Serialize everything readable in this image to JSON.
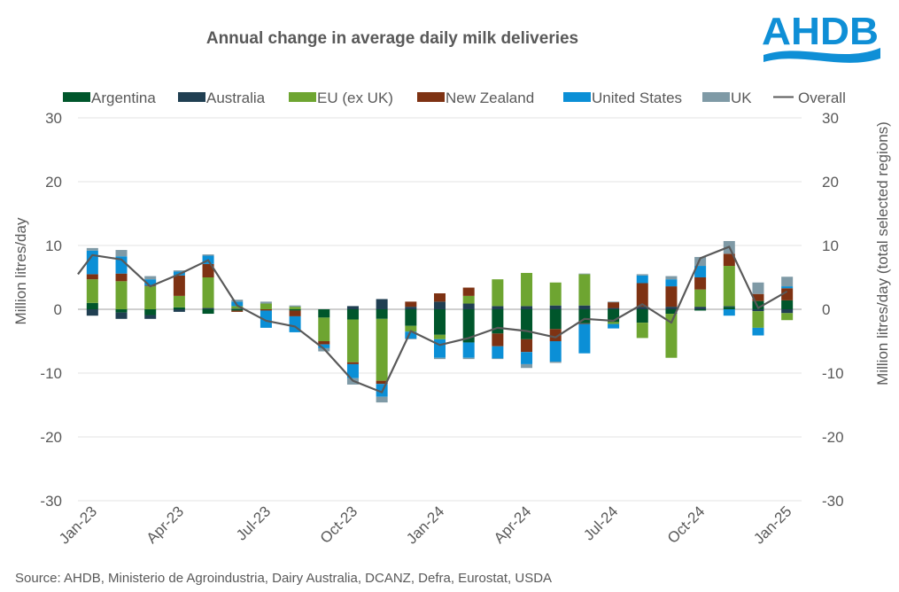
{
  "logo": {
    "text": "AHDB",
    "color": "#0f8fd6"
  },
  "source": "Source: AHDB, Ministerio de Agroindustria, Dairy Australia, DCANZ, Defra, Eurostat, USDA",
  "chart_data": {
    "type": "bar",
    "stacked": true,
    "title": "Annual change in average daily milk deliveries",
    "ylabel": "Million litres/day",
    "y2label": "Million litres/day (total selected regions)",
    "ylim": [
      -30,
      30
    ],
    "y2lim": [
      -30,
      30
    ],
    "yticks": [
      30,
      20,
      10,
      0,
      -10,
      -20,
      -30
    ],
    "grid": true,
    "legend_position": "top",
    "categories": [
      "Jan-23",
      "Feb-23",
      "Mar-23",
      "Apr-23",
      "May-23",
      "Jun-23",
      "Jul-23",
      "Aug-23",
      "Sep-23",
      "Oct-23",
      "Nov-23",
      "Dec-23",
      "Jan-24",
      "Feb-24",
      "Mar-24",
      "Apr-24",
      "May-24",
      "Jun-24",
      "Jul-24",
      "Aug-24",
      "Sep-24",
      "Oct-24",
      "Nov-24",
      "Dec-24",
      "Jan-25"
    ],
    "xtick_labels": [
      "Jan-23",
      "Apr-23",
      "Jul-23",
      "Oct-23",
      "Jan-24",
      "Apr-24",
      "Jul-24",
      "Oct-24",
      "Jan-25"
    ],
    "series": [
      {
        "name": "Argentina",
        "color": "#00562b",
        "values": [
          1.0,
          -0.5,
          -0.9,
          0.3,
          -0.7,
          -0.2,
          0.0,
          -0.2,
          -1.3,
          -1.6,
          -1.5,
          -2.6,
          -4.0,
          -5.2,
          -3.8,
          -4.7,
          -3.1,
          -2.2,
          -2.0,
          -2.1,
          -0.7,
          -0.2,
          0.4,
          1.3,
          1.4
        ]
      },
      {
        "name": "Australia",
        "color": "#203f52",
        "values": [
          -1.0,
          -1.0,
          -0.6,
          -0.4,
          0.2,
          0.1,
          0.0,
          0.0,
          0.0,
          0.5,
          1.6,
          0.4,
          1.2,
          0.9,
          0.5,
          0.5,
          0.6,
          0.6,
          0.2,
          0.4,
          0.4,
          0.4,
          0.1,
          -0.3,
          -0.6
        ]
      },
      {
        "name": "EU (ex UK)",
        "color": "#6ea531",
        "values": [
          3.7,
          4.4,
          3.6,
          1.8,
          4.8,
          0.4,
          0.9,
          0.4,
          -3.7,
          -6.7,
          -9.7,
          -0.9,
          -0.7,
          1.2,
          4.2,
          5.2,
          3.6,
          4.9,
          -0.3,
          -2.4,
          -6.9,
          2.7,
          6.3,
          -2.6,
          -1.1
        ]
      },
      {
        "name": "New Zealand",
        "color": "#7e3213",
        "values": [
          0.8,
          1.2,
          0.1,
          3.2,
          2.1,
          -0.2,
          -0.2,
          -0.9,
          -0.5,
          -0.3,
          -0.5,
          0.8,
          1.3,
          1.3,
          -2.0,
          -2.0,
          -1.9,
          -0.1,
          0.9,
          3.7,
          3.2,
          1.9,
          1.9,
          1.1,
          1.9
        ]
      },
      {
        "name": "United States",
        "color": "#0b8fd6",
        "values": [
          3.7,
          2.7,
          1.0,
          0.6,
          1.3,
          0.7,
          -2.7,
          -2.5,
          -0.6,
          -2.2,
          -2.0,
          -1.1,
          -2.9,
          -2.4,
          -1.9,
          -1.9,
          -3.2,
          -4.6,
          -0.7,
          1.2,
          1.1,
          1.8,
          -1.0,
          -1.2,
          0.3
        ]
      },
      {
        "name": "UK",
        "color": "#7f9aa6",
        "values": [
          0.4,
          1.0,
          0.5,
          0.2,
          0.2,
          0.3,
          0.3,
          0.2,
          -0.5,
          -1.0,
          -0.9,
          -0.1,
          -0.2,
          -0.2,
          -0.1,
          -0.6,
          -0.2,
          0.1,
          0.1,
          0.2,
          0.5,
          1.4,
          2.0,
          1.8,
          1.5
        ]
      }
    ],
    "overall": {
      "name": "Overall",
      "color": "#595959",
      "axis": "secondary",
      "values": [
        8.5,
        7.8,
        3.6,
        5.5,
        7.7,
        0.6,
        -1.8,
        -2.7,
        -6.2,
        -11.2,
        -13.0,
        -3.4,
        -5.6,
        -4.5,
        -2.9,
        -3.4,
        -4.4,
        -1.5,
        -1.8,
        0.8,
        -2.1,
        8.0,
        9.8,
        0.2,
        2.8
      ],
      "start_value": 5.5
    }
  }
}
